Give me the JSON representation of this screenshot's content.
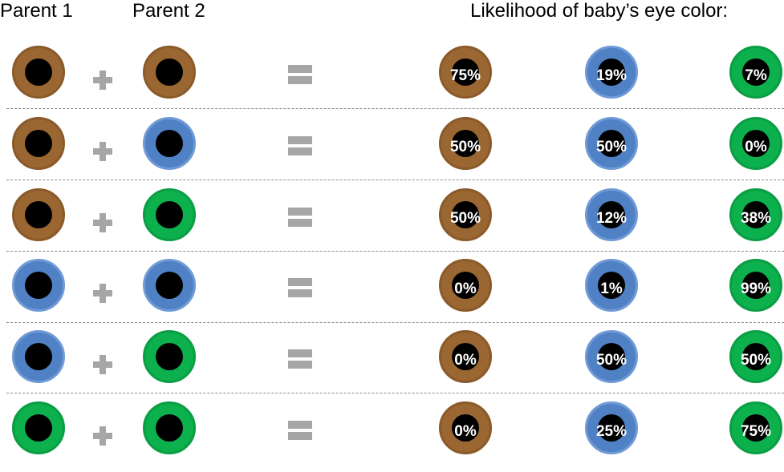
{
  "headers": {
    "parent1": "Parent 1",
    "parent2": "Parent 2",
    "likelihood": "Likelihood of baby’s eye color:"
  },
  "colors": {
    "brown": "#9a6632",
    "blue": "#4f81c4",
    "green": "#0cb04c",
    "pupil": "#000000",
    "operator": "#a6a6a6"
  },
  "rows": [
    {
      "parent1": "brown",
      "parent2": "brown",
      "brown": "75%",
      "blue": "19%",
      "green": "7%"
    },
    {
      "parent1": "brown",
      "parent2": "blue",
      "brown": "50%",
      "blue": "50%",
      "green": "0%"
    },
    {
      "parent1": "brown",
      "parent2": "green",
      "brown": "50%",
      "blue": "12%",
      "green": "38%"
    },
    {
      "parent1": "blue",
      "parent2": "blue",
      "brown": "0%",
      "blue": "1%",
      "green": "99%"
    },
    {
      "parent1": "blue",
      "parent2": "green",
      "brown": "0%",
      "blue": "50%",
      "green": "50%"
    },
    {
      "parent1": "green",
      "parent2": "green",
      "brown": "0%",
      "blue": "25%",
      "green": "75%"
    }
  ]
}
